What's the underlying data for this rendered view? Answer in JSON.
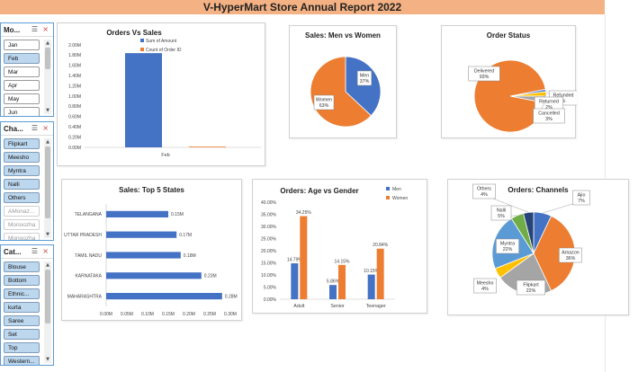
{
  "report_title": "V-HyperMart Store Annual Report 2022",
  "colors": {
    "blue": "#4472c4",
    "orange": "#ed7d31",
    "grey": "#a5a5a5",
    "yellow": "#ffc000",
    "light_blue": "#5b9bd5",
    "green": "#70ad47",
    "navy": "#264478",
    "title_bg": "#f4b183",
    "slicer_selected": "#bdd7ee"
  },
  "slicers": [
    {
      "title": "Mo...",
      "filter_icon": "multi-select-icon",
      "clear_icon": "clear-filter-icon",
      "items": [
        {
          "label": "Jan",
          "state": "normal"
        },
        {
          "label": "Feb",
          "state": "selected"
        },
        {
          "label": "Mar",
          "state": "normal"
        },
        {
          "label": "Apr",
          "state": "normal"
        },
        {
          "label": "May",
          "state": "normal"
        },
        {
          "label": "Jun",
          "state": "normal"
        }
      ]
    },
    {
      "title": "Cha...",
      "filter_icon": "multi-select-icon",
      "clear_icon": "clear-filter-icon",
      "items": [
        {
          "label": "Flipkart",
          "state": "selected"
        },
        {
          "label": "Meesho",
          "state": "selected"
        },
        {
          "label": "Myntra",
          "state": "selected"
        },
        {
          "label": "Nalli",
          "state": "selected"
        },
        {
          "label": "Others",
          "state": "selected"
        },
        {
          "label": "AMonaz...",
          "state": "dim"
        },
        {
          "label": "Monoozha",
          "state": "dim"
        },
        {
          "label": "Monoozha",
          "state": "dim"
        }
      ]
    },
    {
      "title": "Cat...",
      "filter_icon": "multi-select-icon",
      "clear_icon": "clear-filter-icon",
      "items": [
        {
          "label": "Blouse",
          "state": "selected"
        },
        {
          "label": "Bottom",
          "state": "selected"
        },
        {
          "label": "Ethnic...",
          "state": "selected"
        },
        {
          "label": "kurta",
          "state": "selected"
        },
        {
          "label": "Saree",
          "state": "selected"
        },
        {
          "label": "Set",
          "state": "selected"
        },
        {
          "label": "Top",
          "state": "selected"
        },
        {
          "label": "Western...",
          "state": "selected"
        }
      ]
    }
  ],
  "chart_data": [
    {
      "id": "orders_vs_sales",
      "type": "bar",
      "title": "Orders Vs Sales",
      "categories": [
        "Feb"
      ],
      "series": [
        {
          "name": "Sum of Amount",
          "values": [
            1.84
          ],
          "color": "#4472c4"
        },
        {
          "name": "Count of Order ID",
          "values": [
            0.0022
          ],
          "color": "#ed7d31"
        }
      ],
      "y_unit": "M",
      "ylim": [
        0,
        2.0
      ],
      "y_ticks": [
        "0.00M",
        "0.20M",
        "0.40M",
        "0.60M",
        "0.80M",
        "1.00M",
        "1.20M",
        "1.40M",
        "1.60M",
        "1.80M",
        "2.00M"
      ],
      "legend": "top-right",
      "grid": false
    },
    {
      "id": "sales_men_women",
      "type": "pie",
      "title": "Sales: Men vs Women",
      "slices": [
        {
          "label": "Men",
          "value": 37,
          "text": "37%",
          "color": "#4472c4"
        },
        {
          "label": "Women",
          "value": 63,
          "text": "63%",
          "color": "#ed7d31"
        }
      ]
    },
    {
      "id": "order_status",
      "type": "pie",
      "title": "Order Status",
      "slices": [
        {
          "label": "Delivered",
          "value": 93,
          "text": "93%",
          "color": "#ed7d31"
        },
        {
          "label": "Refunded",
          "value": 1,
          "text": "%",
          "color": "#4472c4"
        },
        {
          "label": "Returned",
          "value": 2,
          "text": "2%",
          "color": "#ffc000"
        },
        {
          "label": "Cancelled",
          "value": 3,
          "text": "3%",
          "color": "#a5a5a5"
        }
      ]
    },
    {
      "id": "top5_states",
      "type": "bar",
      "orientation": "horizontal",
      "title": "Sales: Top 5 States",
      "categories": [
        "TELANGANA",
        "UTTAR PRADESH",
        "TAMIL NADU",
        "KARNATAKA",
        "MAHARASHTRA"
      ],
      "values": [
        0.15,
        0.17,
        0.18,
        0.23,
        0.28
      ],
      "value_labels": [
        "0.15M",
        "0.17M",
        "0.18M",
        "0.23M",
        "0.28M"
      ],
      "xlim": [
        0,
        0.3
      ],
      "x_ticks": [
        "0.00M",
        "0.05M",
        "0.10M",
        "0.15M",
        "0.20M",
        "0.25M",
        "0.30M"
      ],
      "grid": false
    },
    {
      "id": "age_vs_gender",
      "type": "bar",
      "title": "Orders: Age vs Gender",
      "categories": [
        "Adult",
        "Senior",
        "Teenager"
      ],
      "series": [
        {
          "name": "Men",
          "values": [
            14.79,
            5.86,
            10.15
          ],
          "labels": [
            "14.79%",
            "5.86%",
            "10.15%"
          ],
          "color": "#4472c4"
        },
        {
          "name": "Women",
          "values": [
            34.25,
            14.15,
            20.84
          ],
          "labels": [
            "34.25%",
            "14.15%",
            "20.84%"
          ],
          "color": "#ed7d31"
        }
      ],
      "ylim": [
        0,
        40
      ],
      "y_ticks": [
        "0.00%",
        "5.00%",
        "10.00%",
        "15.00%",
        "20.00%",
        "25.00%",
        "30.00%",
        "35.00%",
        "40.00%"
      ],
      "legend": "top-right",
      "grid": false
    },
    {
      "id": "channels",
      "type": "pie",
      "title": "Orders: Channels",
      "slices": [
        {
          "label": "Ajio",
          "value": 7,
          "text": "7%",
          "color": "#4472c4"
        },
        {
          "label": "Amazon",
          "value": 36,
          "text": "36%",
          "color": "#ed7d31"
        },
        {
          "label": "Flipkart",
          "value": 22,
          "text": "22%",
          "color": "#a5a5a5"
        },
        {
          "label": "Meesho",
          "value": 4,
          "text": "4%",
          "color": "#ffc000"
        },
        {
          "label": "Myntra",
          "value": 22,
          "text": "22%",
          "color": "#5b9bd5"
        },
        {
          "label": "Nalli",
          "value": 5,
          "text": "5%",
          "color": "#70ad47"
        },
        {
          "label": "Others",
          "value": 4,
          "text": "4%",
          "color": "#264478"
        }
      ]
    }
  ]
}
